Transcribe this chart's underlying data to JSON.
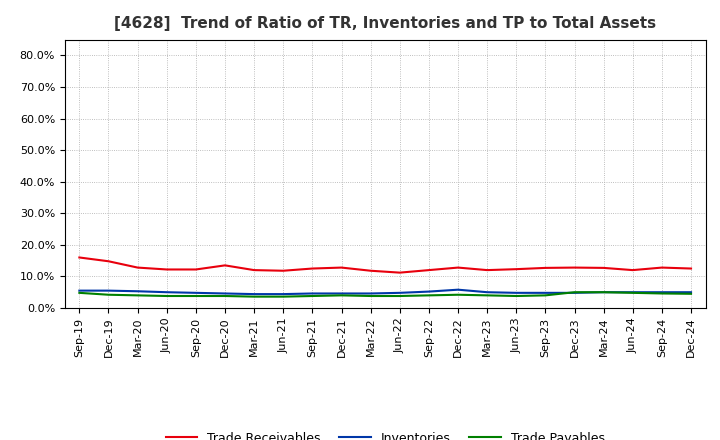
{
  "title": "[4628]  Trend of Ratio of TR, Inventories and TP to Total Assets",
  "labels": [
    "Sep-19",
    "Dec-19",
    "Mar-20",
    "Jun-20",
    "Sep-20",
    "Dec-20",
    "Mar-21",
    "Jun-21",
    "Sep-21",
    "Dec-21",
    "Mar-22",
    "Jun-22",
    "Sep-22",
    "Dec-22",
    "Mar-23",
    "Jun-23",
    "Sep-23",
    "Dec-23",
    "Mar-24",
    "Jun-24",
    "Sep-24",
    "Dec-24"
  ],
  "trade_receivables": [
    0.16,
    0.148,
    0.128,
    0.122,
    0.122,
    0.135,
    0.12,
    0.118,
    0.125,
    0.128,
    0.118,
    0.112,
    0.12,
    0.128,
    0.12,
    0.123,
    0.127,
    0.128,
    0.127,
    0.12,
    0.128,
    0.125
  ],
  "inventories": [
    0.055,
    0.055,
    0.053,
    0.05,
    0.048,
    0.046,
    0.044,
    0.044,
    0.046,
    0.046,
    0.046,
    0.048,
    0.052,
    0.058,
    0.05,
    0.048,
    0.048,
    0.048,
    0.05,
    0.05,
    0.05,
    0.05
  ],
  "trade_payables": [
    0.048,
    0.042,
    0.04,
    0.038,
    0.038,
    0.038,
    0.036,
    0.036,
    0.038,
    0.04,
    0.038,
    0.038,
    0.04,
    0.042,
    0.04,
    0.038,
    0.04,
    0.05,
    0.05,
    0.048,
    0.046,
    0.045
  ],
  "tr_color": "#e8000d",
  "inv_color": "#0037a8",
  "tp_color": "#008000",
  "ylim": [
    0.0,
    0.85
  ],
  "yticks": [
    0.0,
    0.1,
    0.2,
    0.3,
    0.4,
    0.5,
    0.6,
    0.7,
    0.8
  ],
  "background_color": "#ffffff",
  "grid_color": "#aaaaaa",
  "line_width": 1.5,
  "title_fontsize": 11,
  "tick_fontsize": 8,
  "legend_fontsize": 9
}
